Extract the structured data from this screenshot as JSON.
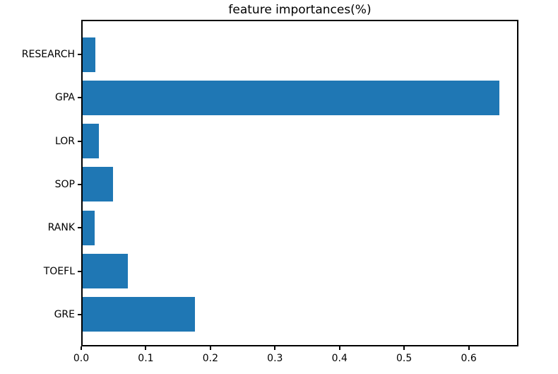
{
  "figure": {
    "background_color": "#ffffff",
    "spine_color": "#000000",
    "text_color": "#000000"
  },
  "chart_data": {
    "type": "bar",
    "orientation": "horizontal",
    "title": "feature importances(%)",
    "xlabel": "",
    "ylabel": "",
    "categories": [
      "RESEARCH",
      "GPA",
      "LOR",
      "SOP",
      "RANK",
      "TOEFL",
      "GRE"
    ],
    "values": [
      0.02,
      0.645,
      0.025,
      0.047,
      0.019,
      0.07,
      0.174
    ],
    "bar_color": "#1f77b4",
    "xlim": [
      0,
      0.677
    ],
    "x_tick_labels": [
      "0.0",
      "0.1",
      "0.2",
      "0.3",
      "0.4",
      "0.5",
      "0.6"
    ],
    "x_tick_values": [
      0.0,
      0.1,
      0.2,
      0.3,
      0.4,
      0.5,
      0.6
    ],
    "grid": "off",
    "legend": "none"
  }
}
